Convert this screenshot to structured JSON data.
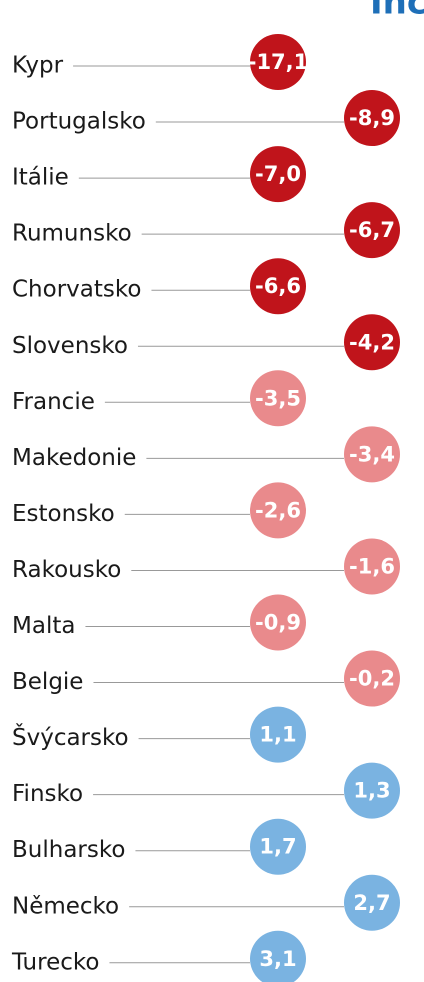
{
  "chart_data": {
    "type": "dot",
    "title": "Inc",
    "categories": [
      "Kypr",
      "Portugalsko",
      "Itálie",
      "Rumunsko",
      "Chorvatsko",
      "Slovensko",
      "Francie",
      "Makedonie",
      "Estonsko",
      "Rakousko",
      "Malta",
      "Belgie",
      "Švýcarsko",
      "Finsko",
      "Bulharsko",
      "Německo",
      "Turecko"
    ],
    "values": [
      -17.1,
      -8.9,
      -7.0,
      -6.7,
      -6.6,
      -4.2,
      -3.5,
      -3.4,
      -2.6,
      -1.6,
      -0.9,
      -0.2,
      1.1,
      1.3,
      1.7,
      2.7,
      3.1
    ],
    "value_labels": [
      "-17,1",
      "-8,9",
      "-7,0",
      "-6,7",
      "-6,6",
      "-4,2",
      "-3,5",
      "-3,4",
      "-2,6",
      "-1,6",
      "-0,9",
      "-0,2",
      "1,1",
      "1,3",
      "1,7",
      "2,7",
      "3,1"
    ],
    "colors": [
      "#c0141b",
      "#c0141b",
      "#c0141b",
      "#c0141b",
      "#c0141b",
      "#c0141b",
      "#e98a8c",
      "#e98a8c",
      "#e98a8c",
      "#e98a8c",
      "#e98a8c",
      "#e98a8c",
      "#7ab3e1",
      "#7ab3e1",
      "#7ab3e1",
      "#7ab3e1",
      "#7ab3e1"
    ]
  }
}
